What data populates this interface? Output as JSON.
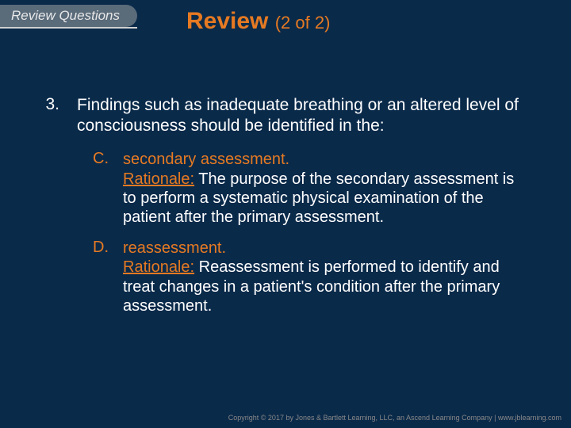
{
  "colors": {
    "background": "#0a2a4a",
    "accent": "#e67a22",
    "text": "#ffffff",
    "tab_bg": "#5a6b7a",
    "tab_text": "#e8e8e8",
    "footer_text": "#888888"
  },
  "typography": {
    "title_fontsize_pt": 30,
    "title_sub_fontsize_pt": 22,
    "body_fontsize_pt": 21,
    "answer_fontsize_pt": 20,
    "tab_fontsize_pt": 17,
    "footer_fontsize_pt": 9,
    "title_weight": "bold",
    "font_family": "Arial"
  },
  "header": {
    "tab_label": "Review Questions"
  },
  "title": {
    "main": "Review",
    "sub": "(2 of 2)"
  },
  "question": {
    "number": "3.",
    "text": "Findings such as inadequate breathing or an altered level of consciousness should be identified in the:"
  },
  "answers": [
    {
      "letter": "C.",
      "label": "secondary assessment.",
      "rationale_label": "Rationale:",
      "rationale_text": "The purpose of the secondary assessment is to perform a systematic physical examination of the patient after the primary assessment."
    },
    {
      "letter": "D.",
      "label": "reassessment.",
      "rationale_label": "Rationale:",
      "rationale_text": "Reassessment is performed to identify and treat changes in a patient's condition after the primary assessment."
    }
  ],
  "footer": {
    "text": "Copyright © 2017 by Jones & Bartlett Learning, LLC, an Ascend Learning Company | www.jblearning.com"
  }
}
